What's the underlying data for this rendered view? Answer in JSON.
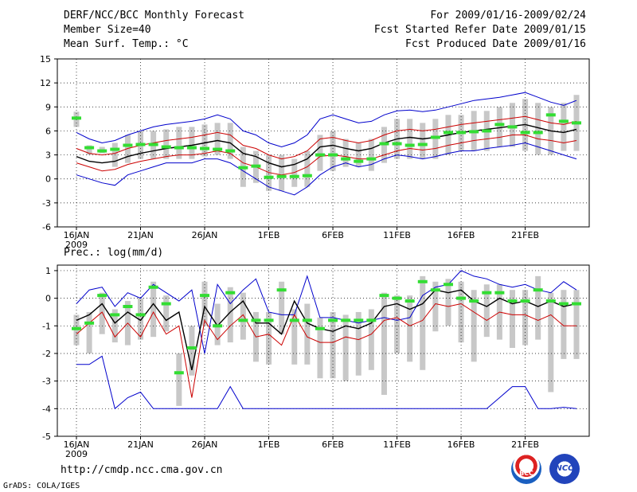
{
  "header": {
    "title": "DERF/NCC/BCC Monthly Forecast",
    "member_size": "Member Size=40",
    "period": "For 2009/01/16-2009/02/24",
    "fcst_started": "Fcst Started Refer Date 2009/01/15",
    "fcst_produced": "Fcst Produced Date 2009/01/16"
  },
  "footer": {
    "url": "http://cmdp.ncc.cma.gov.cn",
    "grads": "GrADS: COLA/IGES",
    "logo_left_text": "BCC",
    "logo_right_text": "NCC"
  },
  "colors": {
    "envelope": "#0000cc",
    "spread": "#cc0000",
    "mean": "#000000",
    "box": "#c8c8c8",
    "obs": "#33dd33",
    "grid": "#000000"
  },
  "chart_data": [
    {
      "type": "line",
      "title": "Mean Surf. Temp.: °C",
      "x_label_year": "2009",
      "x_tick_labels": [
        "16JAN",
        "21JAN",
        "26JAN",
        "1FEB",
        "6FEB",
        "11FEB",
        "16FEB",
        "21FEB"
      ],
      "y_tick_labels": [
        "-6",
        "-3",
        "0",
        "3",
        "6",
        "9",
        "12",
        "15"
      ],
      "ylim": [
        -6,
        15
      ],
      "days": 40,
      "series": [
        {
          "name": "max",
          "values": [
            0.5,
            0.0,
            -0.5,
            -0.8,
            0.5,
            1.0,
            1.5,
            2.0,
            2.0,
            2.0,
            2.5,
            2.5,
            2.0,
            1.0,
            0.0,
            -1.0,
            -1.5,
            -2.0,
            -1.0,
            0.5,
            1.5,
            2.0,
            1.5,
            1.8,
            2.5,
            3.0,
            2.8,
            2.5,
            2.8,
            3.2,
            3.5,
            3.5,
            3.8,
            4.0,
            4.2,
            4.5,
            4.0,
            3.5,
            3.0,
            2.5
          ]
        },
        {
          "name": "lower",
          "values": [
            2.0,
            1.5,
            1.0,
            1.2,
            1.8,
            2.2,
            2.5,
            2.8,
            3.0,
            3.0,
            3.2,
            3.5,
            3.2,
            2.0,
            1.5,
            0.8,
            0.5,
            0.8,
            1.5,
            2.8,
            3.0,
            2.8,
            2.5,
            2.5,
            3.0,
            3.5,
            3.8,
            3.6,
            3.8,
            4.2,
            4.5,
            4.8,
            5.0,
            5.2,
            5.5,
            5.5,
            5.0,
            4.8,
            4.5,
            4.8
          ]
        },
        {
          "name": "mean",
          "values": [
            2.8,
            2.2,
            2.0,
            2.2,
            2.8,
            3.2,
            3.5,
            3.8,
            4.0,
            4.2,
            4.5,
            4.8,
            4.5,
            3.2,
            2.8,
            2.0,
            1.5,
            1.8,
            2.5,
            4.0,
            4.2,
            3.8,
            3.5,
            3.8,
            4.5,
            5.0,
            5.2,
            5.0,
            5.2,
            5.5,
            5.8,
            6.0,
            6.2,
            6.4,
            6.6,
            6.8,
            6.4,
            6.0,
            5.8,
            6.2
          ]
        },
        {
          "name": "upper",
          "values": [
            3.8,
            3.2,
            3.0,
            3.2,
            3.8,
            4.2,
            4.5,
            4.8,
            5.0,
            5.2,
            5.5,
            5.8,
            5.5,
            4.2,
            3.8,
            3.0,
            2.5,
            2.8,
            3.5,
            5.0,
            5.2,
            4.8,
            4.5,
            4.8,
            5.5,
            6.0,
            6.2,
            6.0,
            6.2,
            6.5,
            6.8,
            7.0,
            7.2,
            7.4,
            7.6,
            7.8,
            7.4,
            7.0,
            6.8,
            7.2
          ]
        },
        {
          "name": "min",
          "values": [
            5.8,
            5.0,
            4.5,
            4.8,
            5.5,
            6.0,
            6.5,
            6.8,
            7.0,
            7.2,
            7.5,
            8.0,
            7.5,
            6.0,
            5.5,
            4.5,
            4.0,
            4.5,
            5.5,
            7.5,
            8.0,
            7.5,
            7.0,
            7.2,
            8.0,
            8.5,
            8.6,
            8.4,
            8.6,
            9.0,
            9.4,
            9.8,
            10.0,
            10.2,
            10.5,
            10.8,
            10.2,
            9.6,
            9.2,
            9.8
          ]
        },
        {
          "name": "obs",
          "values": [
            7.6,
            3.9,
            3.5,
            3.7,
            4.2,
            4.3,
            4.3,
            4.0,
            3.9,
            3.9,
            3.8,
            3.7,
            3.5,
            1.4,
            1.6,
            0.2,
            0.3,
            0.3,
            0.4,
            3.0,
            3.0,
            2.5,
            2.2,
            2.5,
            4.4,
            4.4,
            4.2,
            4.3,
            5.2,
            5.8,
            5.8,
            5.9,
            6.0,
            6.8,
            6.5,
            5.8,
            5.8,
            8.0,
            7.2,
            7.0
          ]
        }
      ],
      "boxes": [
        {
          "day": 0,
          "low": 6.5,
          "high": 8.4
        },
        {
          "day": 1,
          "low": 3.0,
          "high": 4.2
        },
        {
          "day": 2,
          "low": 3.2,
          "high": 4.0
        },
        {
          "day": 3,
          "low": 1.5,
          "high": 4.5
        },
        {
          "day": 4,
          "low": 2.0,
          "high": 5.5
        },
        {
          "day": 5,
          "low": 2.5,
          "high": 6.0
        },
        {
          "day": 6,
          "low": 2.5,
          "high": 6.0
        },
        {
          "day": 7,
          "low": 2.5,
          "high": 6.2
        },
        {
          "day": 8,
          "low": 2.5,
          "high": 6.5
        },
        {
          "day": 9,
          "low": 2.5,
          "high": 6.5
        },
        {
          "day": 10,
          "low": 2.8,
          "high": 6.8
        },
        {
          "day": 11,
          "low": 3.0,
          "high": 7.0
        },
        {
          "day": 12,
          "low": 2.5,
          "high": 7.0
        },
        {
          "day": 13,
          "low": -1.0,
          "high": 4.0
        },
        {
          "day": 14,
          "low": -0.5,
          "high": 3.5
        },
        {
          "day": 15,
          "low": -1.5,
          "high": 3.0
        },
        {
          "day": 16,
          "low": -1.5,
          "high": 3.0
        },
        {
          "day": 17,
          "low": -1.0,
          "high": 2.5
        },
        {
          "day": 18,
          "low": -1.0,
          "high": 3.5
        },
        {
          "day": 19,
          "low": 1.0,
          "high": 5.5
        },
        {
          "day": 20,
          "low": 1.0,
          "high": 6.0
        },
        {
          "day": 21,
          "low": 1.5,
          "high": 5.0
        },
        {
          "day": 22,
          "low": 1.5,
          "high": 4.5
        },
        {
          "day": 23,
          "low": 1.0,
          "high": 5.0
        },
        {
          "day": 24,
          "low": 2.0,
          "high": 6.5
        },
        {
          "day": 25,
          "low": 2.5,
          "high": 7.5
        },
        {
          "day": 26,
          "low": 2.5,
          "high": 7.5
        },
        {
          "day": 27,
          "low": 2.5,
          "high": 7.0
        },
        {
          "day": 28,
          "low": 2.5,
          "high": 7.5
        },
        {
          "day": 29,
          "low": 3.0,
          "high": 8.0
        },
        {
          "day": 30,
          "low": 3.5,
          "high": 8.0
        },
        {
          "day": 31,
          "low": 3.5,
          "high": 8.5
        },
        {
          "day": 32,
          "low": 3.5,
          "high": 8.5
        },
        {
          "day": 33,
          "low": 4.0,
          "high": 9.0
        },
        {
          "day": 34,
          "low": 4.0,
          "high": 9.5
        },
        {
          "day": 35,
          "low": 3.5,
          "high": 10.0
        },
        {
          "day": 36,
          "low": 3.0,
          "high": 9.5
        },
        {
          "day": 37,
          "low": 3.0,
          "high": 9.0
        },
        {
          "day": 38,
          "low": 3.5,
          "high": 9.5
        },
        {
          "day": 39,
          "low": 3.5,
          "high": 10.5
        }
      ]
    },
    {
      "type": "line",
      "title": "Prec.: log(mm/d)",
      "x_label_year": "2009",
      "x_tick_labels": [
        "16JAN",
        "21JAN",
        "26JAN",
        "1FEB",
        "6FEB",
        "11FEB",
        "16FEB",
        "21FEB"
      ],
      "y_tick_labels": [
        "-5",
        "-4",
        "-3",
        "-2",
        "-1",
        "0",
        "1"
      ],
      "ylim": [
        -5,
        1.2
      ],
      "days": 40,
      "series": [
        {
          "name": "max",
          "values": [
            -0.2,
            0.3,
            0.4,
            -0.3,
            0.2,
            0.0,
            0.5,
            0.2,
            -0.1,
            0.3,
            -2.0,
            0.5,
            -0.2,
            0.3,
            0.7,
            -0.5,
            -0.6,
            -0.6,
            0.8,
            -0.7,
            -0.7,
            -0.8,
            -0.9,
            -0.8,
            -0.7,
            -0.8,
            -0.7,
            0.1,
            0.4,
            0.5,
            1.0,
            0.8,
            0.7,
            0.5,
            0.4,
            0.5,
            0.3,
            0.2,
            0.6,
            0.3
          ]
        },
        {
          "name": "mean",
          "values": [
            -0.8,
            -0.6,
            -0.2,
            -0.9,
            -0.5,
            -0.8,
            -0.2,
            -0.8,
            -0.5,
            -2.6,
            -0.3,
            -1.0,
            -0.5,
            -0.1,
            -0.9,
            -0.9,
            -1.3,
            -0.1,
            -0.9,
            -1.1,
            -1.2,
            -1.0,
            -1.1,
            -0.9,
            -0.3,
            -0.2,
            -0.4,
            -0.2,
            0.3,
            0.2,
            0.3,
            -0.1,
            -0.3,
            0.0,
            -0.2,
            -0.1,
            -0.3,
            -0.1,
            -0.3,
            -0.2
          ]
        },
        {
          "name": "min",
          "values": [
            -1.3,
            -0.9,
            -0.5,
            -1.4,
            -0.9,
            -1.4,
            -0.5,
            -1.3,
            -1.0,
            -3.6,
            -0.8,
            -1.5,
            -1.0,
            -0.6,
            -1.4,
            -1.3,
            -1.7,
            -0.6,
            -1.4,
            -1.6,
            -1.6,
            -1.4,
            -1.5,
            -1.3,
            -0.8,
            -0.7,
            -1.0,
            -0.8,
            -0.2,
            -0.3,
            -0.2,
            -0.5,
            -0.8,
            -0.5,
            -0.6,
            -0.6,
            -0.8,
            -0.6,
            -1.0,
            -1.0
          ]
        },
        {
          "name": "lower_env",
          "values": [
            -2.4,
            -2.4,
            -2.1,
            -4.0,
            -3.6,
            -3.4,
            -4.0,
            -4.0,
            -4.0,
            -4.0,
            -4.0,
            -4.0,
            -3.2,
            -4.0,
            -4.0,
            -4.0,
            -4.0,
            -4.0,
            -4.0,
            -4.0,
            -4.0,
            -4.0,
            -4.0,
            -4.0,
            -4.0,
            -4.0,
            -4.0,
            -4.0,
            -4.0,
            -4.0,
            -4.0,
            -4.0,
            -4.0,
            -3.6,
            -3.2,
            -3.2,
            -4.0,
            -4.0,
            -3.95,
            -4.0
          ]
        },
        {
          "name": "obs",
          "values": [
            -1.1,
            -0.9,
            0.1,
            -0.6,
            -0.3,
            -0.6,
            0.4,
            -0.2,
            -2.7,
            -1.8,
            0.1,
            -1.0,
            0.2,
            -0.8,
            -0.8,
            -0.8,
            0.3,
            -0.8,
            -0.8,
            -1.1,
            -0.8,
            -0.8,
            -0.8,
            -0.8,
            0.1,
            0.0,
            -0.1,
            0.6,
            0.3,
            0.5,
            0.0,
            -0.1,
            0.2,
            0.2,
            -0.1,
            -0.1,
            0.3,
            -0.1,
            -0.2,
            -0.2
          ]
        }
      ],
      "boxes": [
        {
          "day": 0,
          "low": -1.7,
          "high": -0.6
        },
        {
          "day": 1,
          "low": -2.0,
          "high": -0.5
        },
        {
          "day": 2,
          "low": -1.3,
          "high": 0.2
        },
        {
          "day": 3,
          "low": -1.6,
          "high": -0.4
        },
        {
          "day": 4,
          "low": -1.7,
          "high": -0.1
        },
        {
          "day": 5,
          "low": -1.5,
          "high": 0.0
        },
        {
          "day": 6,
          "low": -1.4,
          "high": 0.6
        },
        {
          "day": 7,
          "low": -1.2,
          "high": 0.1
        },
        {
          "day": 8,
          "low": -3.9,
          "high": -2.0
        },
        {
          "day": 9,
          "low": -2.8,
          "high": -1.0
        },
        {
          "day": 10,
          "low": -1.0,
          "high": 0.6
        },
        {
          "day": 11,
          "low": -1.7,
          "high": -0.2
        },
        {
          "day": 12,
          "low": -1.6,
          "high": 0.4
        },
        {
          "day": 13,
          "low": -1.5,
          "high": 0.2
        },
        {
          "day": 14,
          "low": -2.3,
          "high": -0.5
        },
        {
          "day": 15,
          "low": -2.4,
          "high": -0.5
        },
        {
          "day": 16,
          "low": -1.3,
          "high": 0.6
        },
        {
          "day": 17,
          "low": -2.4,
          "high": -0.4
        },
        {
          "day": 18,
          "low": -2.4,
          "high": -0.2
        },
        {
          "day": 19,
          "low": -2.9,
          "high": -0.7
        },
        {
          "day": 20,
          "low": -2.9,
          "high": -0.5
        },
        {
          "day": 21,
          "low": -3.0,
          "high": -0.6
        },
        {
          "day": 22,
          "low": -2.8,
          "high": -0.5
        },
        {
          "day": 23,
          "low": -2.6,
          "high": -0.4
        },
        {
          "day": 24,
          "low": -3.5,
          "high": 0.2
        },
        {
          "day": 25,
          "low": -2.0,
          "high": 0.1
        },
        {
          "day": 26,
          "low": -2.3,
          "high": 0.1
        },
        {
          "day": 27,
          "low": -2.6,
          "high": 0.8
        },
        {
          "day": 28,
          "low": -1.2,
          "high": 0.6
        },
        {
          "day": 29,
          "low": -1.0,
          "high": 0.7
        },
        {
          "day": 30,
          "low": -1.6,
          "high": 0.6
        },
        {
          "day": 31,
          "low": -2.3,
          "high": 0.3
        },
        {
          "day": 32,
          "low": -1.4,
          "high": 0.5
        },
        {
          "day": 33,
          "low": -1.5,
          "high": 0.5
        },
        {
          "day": 34,
          "low": -1.8,
          "high": 0.3
        },
        {
          "day": 35,
          "low": -1.7,
          "high": 0.3
        },
        {
          "day": 36,
          "low": -1.5,
          "high": 0.8
        },
        {
          "day": 37,
          "low": -3.4,
          "high": 0.2
        },
        {
          "day": 38,
          "low": -2.2,
          "high": 0.3
        },
        {
          "day": 39,
          "low": -2.2,
          "high": 0.3
        }
      ]
    }
  ]
}
